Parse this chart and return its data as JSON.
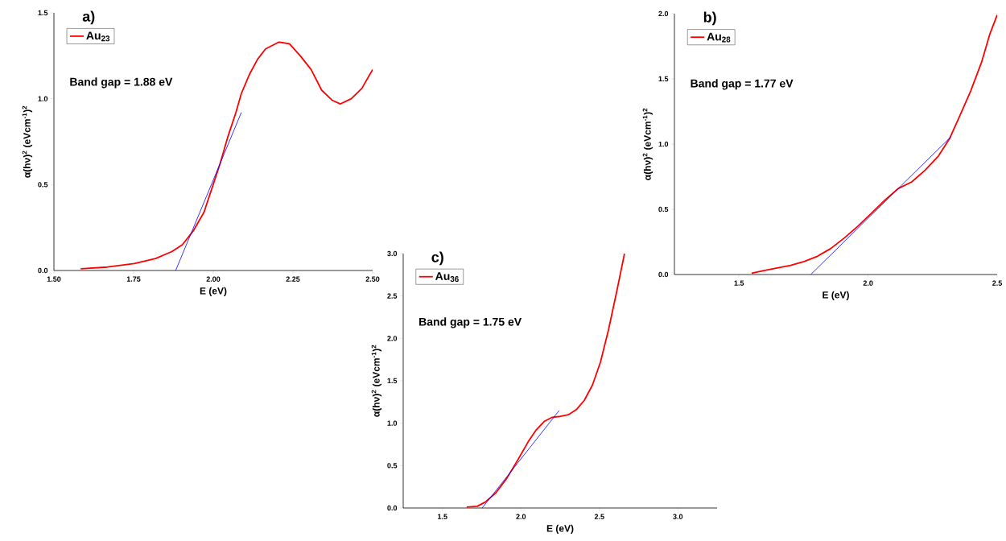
{
  "chart_data": [
    {
      "type": "line",
      "title": "a)",
      "xlabel": "E (eV)",
      "ylabel": "α(hν)$^{2}$ (eVcm$^{-1}$)$^{2}$",
      "xlim": [
        1.5,
        2.5
      ],
      "ylim": [
        0,
        1.5
      ],
      "xticks": [
        {
          "value": 1.5,
          "label": "1.50"
        },
        {
          "value": 1.75,
          "label": "1.75"
        },
        {
          "value": 2.0,
          "label": "2.00"
        },
        {
          "value": 2.25,
          "label": "2.25"
        },
        {
          "value": 2.5,
          "label": "2.50"
        }
      ],
      "yticks": [
        {
          "value": 0,
          "label": "0.0"
        },
        {
          "value": 0.5,
          "label": "0.5"
        },
        {
          "value": 1.0,
          "label": "1.0"
        },
        {
          "value": 1.5,
          "label": "1.5"
        }
      ],
      "legend": "top left",
      "annotations": [
        "Band gap = 1.88 eV"
      ],
      "series": [
        {
          "name": "Au$_{23}$",
          "color": "#ff0000",
          "x": [
            1.584,
            1.668,
            1.752,
            1.819,
            1.87,
            1.903,
            1.937,
            1.971,
            1.996,
            2.021,
            2.046,
            2.071,
            2.088,
            2.113,
            2.139,
            2.164,
            2.206,
            2.239,
            2.273,
            2.307,
            2.34,
            2.374,
            2.399,
            2.433,
            2.466,
            2.5
          ],
          "values": [
            0.01,
            0.02,
            0.04,
            0.07,
            0.11,
            0.15,
            0.23,
            0.34,
            0.48,
            0.62,
            0.78,
            0.92,
            1.03,
            1.14,
            1.23,
            1.29,
            1.33,
            1.32,
            1.25,
            1.17,
            1.05,
            0.99,
            0.97,
            1.0,
            1.06,
            1.17
          ]
        },
        {
          "type": "line",
          "color": "#0000ff",
          "x": [
            1.882,
            2.088
          ],
          "values": [
            0.0,
            0.92
          ]
        }
      ]
    },
    {
      "type": "line",
      "title": "b)",
      "xlabel": "E (eV)",
      "ylabel": "α(hν)$^{2}$ (eVcm$^{-1}$)$^{2}$",
      "xlim": [
        1.25,
        2.5
      ],
      "ylim": [
        0,
        2.0
      ],
      "xticks": [
        {
          "value": 1.5,
          "label": "1.5"
        },
        {
          "value": 2,
          "label": "2.0"
        },
        {
          "value": 2.5,
          "label": "2.5"
        }
      ],
      "yticks": [
        {
          "value": 0,
          "label": "0.0"
        },
        {
          "value": 0.5,
          "label": "0.5"
        },
        {
          "value": 1.0,
          "label": "1.0"
        },
        {
          "value": 1.5,
          "label": "1.5"
        },
        {
          "value": 2.0,
          "label": "2.0"
        }
      ],
      "legend": "top left",
      "annotations": [
        "Band gap = 1.77 eV"
      ],
      "series": [
        {
          "name": "Au$_{28}$",
          "color": "#ff0000",
          "x": [
            1.549,
            1.596,
            1.648,
            1.7,
            1.752,
            1.804,
            1.856,
            1.908,
            1.96,
            2.013,
            2.065,
            2.117,
            2.169,
            2.221,
            2.273,
            2.315,
            2.356,
            2.398,
            2.44,
            2.471,
            2.5
          ],
          "values": [
            0.01,
            0.03,
            0.05,
            0.07,
            0.1,
            0.14,
            0.2,
            0.28,
            0.37,
            0.47,
            0.57,
            0.66,
            0.71,
            0.8,
            0.91,
            1.04,
            1.22,
            1.41,
            1.63,
            1.84,
            1.99
          ]
        },
        {
          "type": "line",
          "color": "#0000ff",
          "x": [
            1.778,
            2.323
          ],
          "values": [
            0.0,
            1.06
          ]
        }
      ]
    },
    {
      "type": "line",
      "title": "c)",
      "xlabel": "E (eV)",
      "ylabel": "α(hν)$^{2}$ (eVcm$^{-1}$)$^{2}$",
      "xlim": [
        1.25,
        3.25
      ],
      "ylim": [
        0,
        3.0
      ],
      "xticks": [
        {
          "value": 1.5,
          "label": "1.5"
        },
        {
          "value": 2,
          "label": "2.0"
        },
        {
          "value": 2.5,
          "label": "2.5"
        },
        {
          "value": 3,
          "label": "3.0"
        }
      ],
      "yticks": [
        {
          "value": 0,
          "label": "0.0"
        },
        {
          "value": 0.5,
          "label": "0.5"
        },
        {
          "value": 1.0,
          "label": "1.0"
        },
        {
          "value": 1.5,
          "label": "1.5"
        },
        {
          "value": 2.0,
          "label": "2.0"
        },
        {
          "value": 2.5,
          "label": "2.5"
        },
        {
          "value": 3.0,
          "label": "3.0"
        }
      ],
      "legend": "top left",
      "annotations": [
        "Band gap = 1.75 eV"
      ],
      "series": [
        {
          "name": "Au$_{36}$",
          "color": "#ff0000",
          "x": [
            1.654,
            1.722,
            1.773,
            1.841,
            1.91,
            1.978,
            2.046,
            2.097,
            2.148,
            2.2,
            2.251,
            2.302,
            2.353,
            2.404,
            2.456,
            2.507,
            2.558,
            2.609,
            2.66
          ],
          "values": [
            0.01,
            0.02,
            0.07,
            0.18,
            0.35,
            0.56,
            0.78,
            0.92,
            1.02,
            1.07,
            1.08,
            1.1,
            1.16,
            1.27,
            1.45,
            1.72,
            2.1,
            2.54,
            3.0
          ]
        },
        {
          "type": "line",
          "color": "#0000ff",
          "x": [
            1.753,
            2.244
          ],
          "values": [
            0.0,
            1.15
          ]
        }
      ]
    }
  ]
}
